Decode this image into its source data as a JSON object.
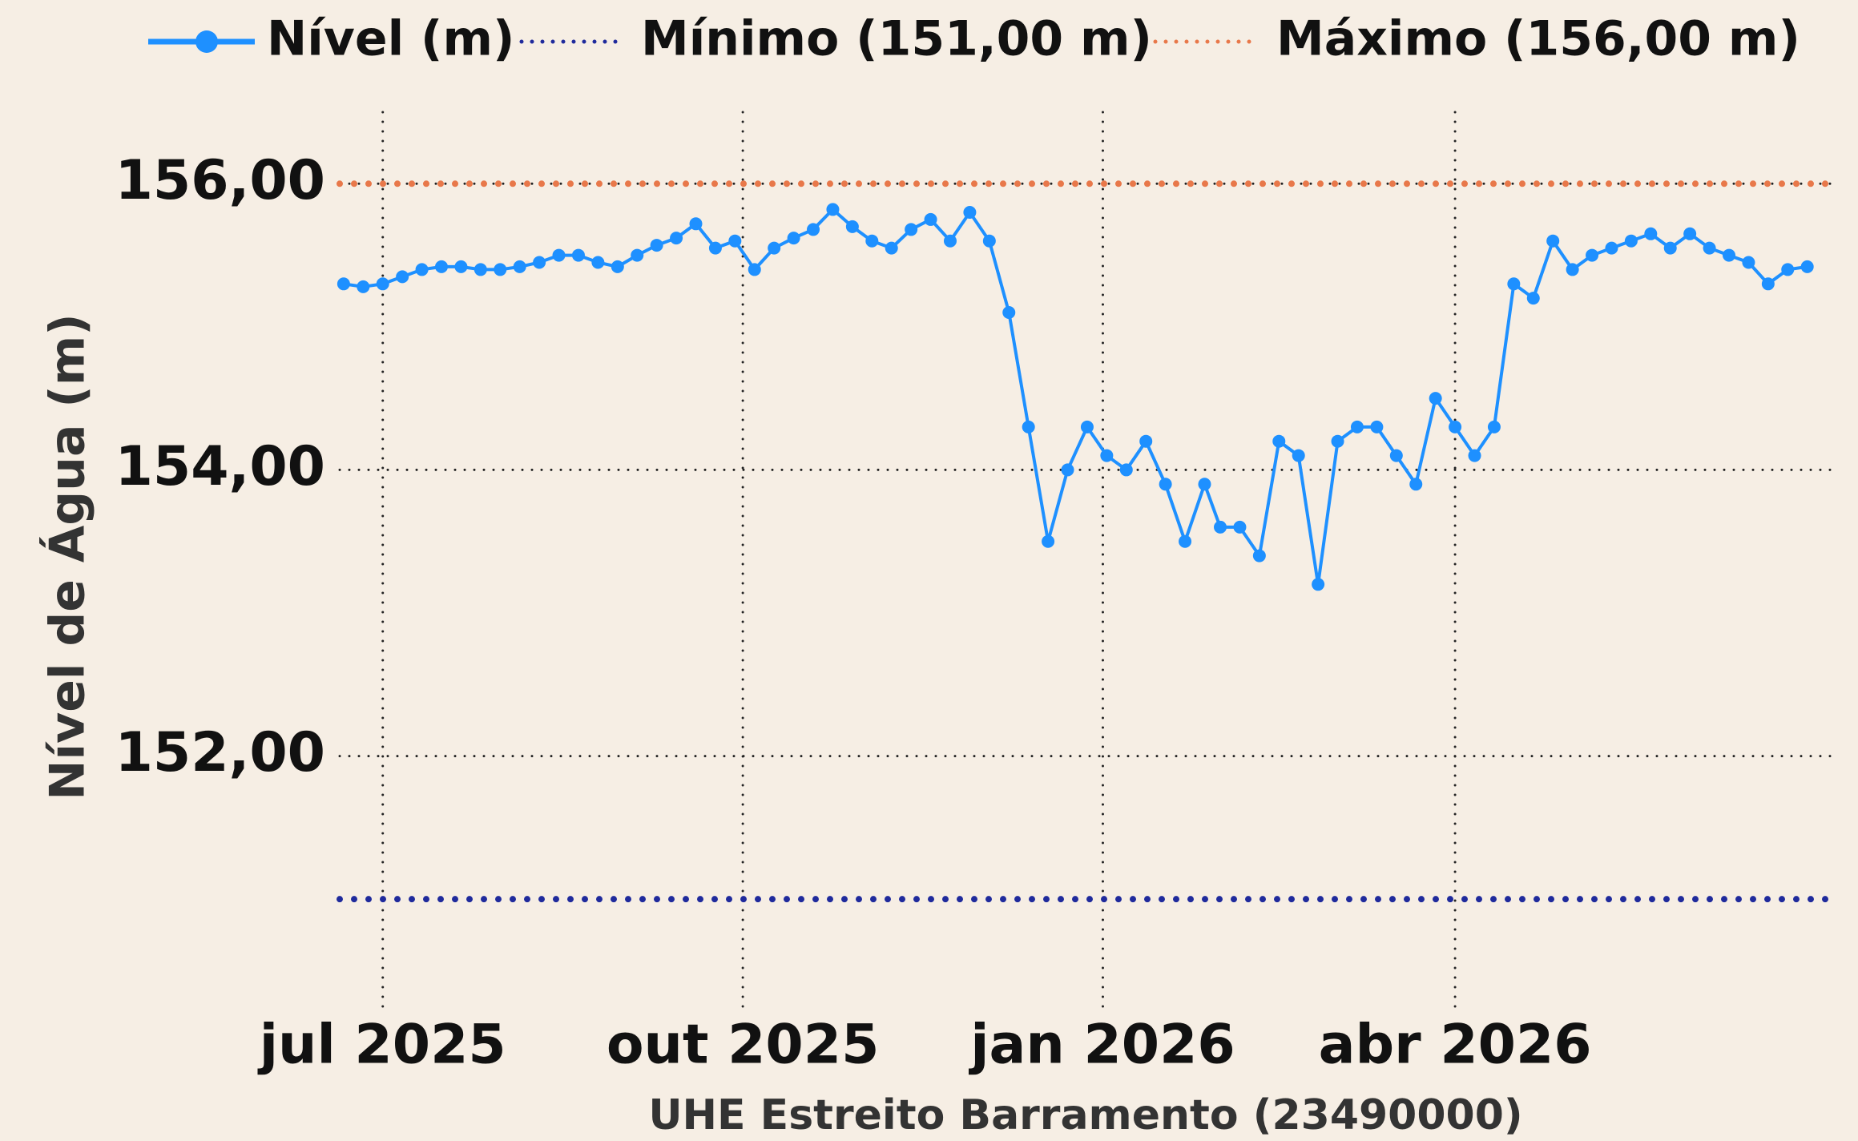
{
  "chart_data": {
    "type": "line",
    "x_label": "UHE Estreito Barramento (23490000)",
    "y_label": "Nível de Água (m)",
    "x": [
      "2025-06-21",
      "2025-06-26",
      "2025-07-01",
      "2025-07-06",
      "2025-07-11",
      "2025-07-16",
      "2025-07-21",
      "2025-07-26",
      "2025-07-31",
      "2025-08-05",
      "2025-08-10",
      "2025-08-15",
      "2025-08-20",
      "2025-08-25",
      "2025-08-30",
      "2025-09-04",
      "2025-09-09",
      "2025-09-14",
      "2025-09-19",
      "2025-09-24",
      "2025-09-29",
      "2025-10-04",
      "2025-10-09",
      "2025-10-14",
      "2025-10-19",
      "2025-10-24",
      "2025-10-29",
      "2025-11-03",
      "2025-11-08",
      "2025-11-13",
      "2025-11-18",
      "2025-11-23",
      "2025-11-28",
      "2025-12-03",
      "2025-12-08",
      "2025-12-13",
      "2025-12-18",
      "2025-12-23",
      "2025-12-28",
      "2026-01-02",
      "2026-01-07",
      "2026-01-12",
      "2026-01-17",
      "2026-01-22",
      "2026-01-27",
      "2026-01-31",
      "2026-02-05",
      "2026-02-10",
      "2026-02-15",
      "2026-02-20",
      "2026-02-25",
      "2026-03-02",
      "2026-03-07",
      "2026-03-12",
      "2026-03-17",
      "2026-03-22",
      "2026-03-27",
      "2026-04-01",
      "2026-04-06",
      "2026-04-11",
      "2026-04-16",
      "2026-04-21",
      "2026-04-26",
      "2026-05-01",
      "2026-05-06",
      "2026-05-11",
      "2026-05-16",
      "2026-05-21",
      "2026-05-26",
      "2026-05-31",
      "2026-06-05",
      "2026-06-10",
      "2026-06-15",
      "2026-06-20",
      "2026-06-25",
      "2026-06-30"
    ],
    "series": [
      {
        "name": "Nível (m)",
        "color": "#1e90ff",
        "values": [
          155.3,
          155.28,
          155.3,
          155.35,
          155.4,
          155.42,
          155.42,
          155.4,
          155.4,
          155.42,
          155.45,
          155.5,
          155.5,
          155.45,
          155.42,
          155.5,
          155.57,
          155.62,
          155.72,
          155.55,
          155.6,
          155.4,
          155.55,
          155.62,
          155.68,
          155.82,
          155.7,
          155.6,
          155.55,
          155.68,
          155.75,
          155.6,
          155.8,
          155.6,
          155.1,
          154.3,
          153.5,
          154.0,
          154.3,
          154.1,
          154.0,
          154.2,
          153.9,
          153.5,
          153.9,
          153.6,
          153.6,
          153.4,
          154.2,
          154.1,
          153.2,
          154.2,
          154.3,
          154.3,
          154.1,
          153.9,
          154.5,
          154.3,
          154.1,
          154.3,
          155.3,
          155.2,
          155.6,
          155.4,
          155.5,
          155.55,
          155.6,
          155.65,
          155.55,
          155.65,
          155.55,
          155.5,
          155.45,
          155.3,
          155.4,
          155.42
        ]
      }
    ],
    "reference_lines": [
      {
        "name": "Mínimo (151,00 m)",
        "value": 151,
        "color": "#1f2a9c"
      },
      {
        "name": "Máximo (156,00 m)",
        "value": 156,
        "color": "#e8784a"
      }
    ],
    "xlim": [
      "2025-06-20",
      "2026-07-06"
    ],
    "xticks": [
      {
        "value": "2025-07-01",
        "label": "jul 2025"
      },
      {
        "value": "2025-10-01",
        "label": "out 2025"
      },
      {
        "value": "2026-01-01",
        "label": "jan 2026"
      },
      {
        "value": "2026-04-01",
        "label": "abr 2026"
      }
    ],
    "ylim": [
      150.2,
      156.5
    ],
    "yticks": [
      {
        "value": 152,
        "label": "152,00"
      },
      {
        "value": 154,
        "label": "154,00"
      },
      {
        "value": 156,
        "label": "156,00"
      }
    ],
    "grid": true
  }
}
